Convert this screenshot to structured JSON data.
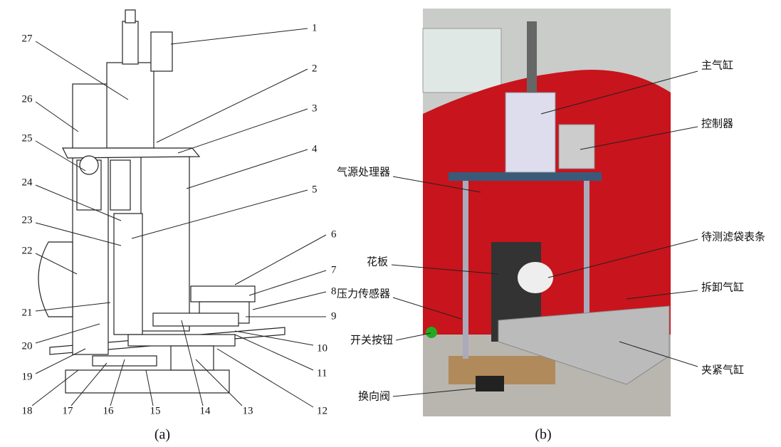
{
  "panels": [
    {
      "caption": "(a)",
      "labels": [
        "1",
        "2",
        "3",
        "4",
        "5",
        "6",
        "7",
        "8",
        "9",
        "10",
        "11",
        "12",
        "13",
        "14",
        "15",
        "16",
        "17",
        "18",
        "19",
        "20",
        "21",
        "22",
        "23",
        "24",
        "25",
        "26",
        "27"
      ]
    },
    {
      "caption": "(b)",
      "labels": [
        "主气缸",
        "控制器",
        "气源处理器",
        "待测滤袋表条",
        "花板",
        "压力传感器",
        "拆卸气缸",
        "开关按钮",
        "夹紧气缸",
        "换向阀"
      ]
    }
  ]
}
